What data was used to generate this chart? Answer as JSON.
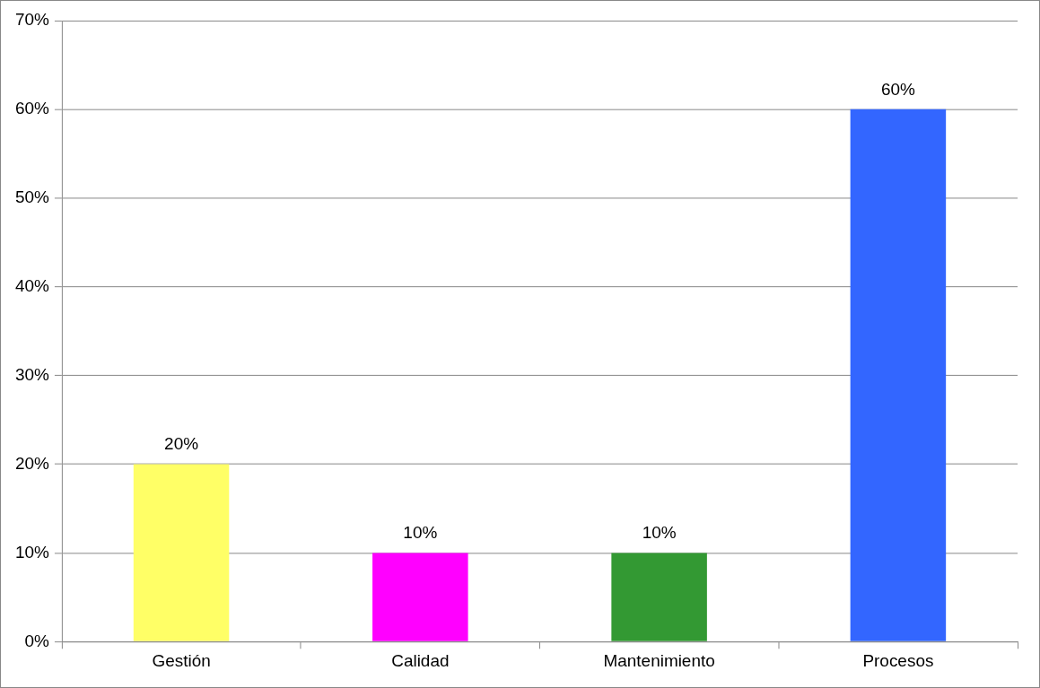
{
  "chart_data": {
    "type": "bar",
    "categories": [
      "Gestión",
      "Calidad",
      "Mantenimiento",
      "Procesos"
    ],
    "values": [
      20,
      10,
      10,
      60
    ],
    "colors": [
      "#ffff66",
      "#ff00ff",
      "#339933",
      "#3366ff"
    ],
    "value_labels": [
      "20%",
      "10%",
      "10%",
      "60%"
    ],
    "ylim": [
      0,
      70
    ],
    "yticks": [
      {
        "value": 0,
        "label": "0%"
      },
      {
        "value": 10,
        "label": "10%"
      },
      {
        "value": 20,
        "label": "20%"
      },
      {
        "value": 30,
        "label": "30%"
      },
      {
        "value": 40,
        "label": "40%"
      },
      {
        "value": 50,
        "label": "50%"
      },
      {
        "value": 60,
        "label": "60%"
      },
      {
        "value": 70,
        "label": "70%"
      }
    ],
    "grid": "y",
    "legend": false
  }
}
